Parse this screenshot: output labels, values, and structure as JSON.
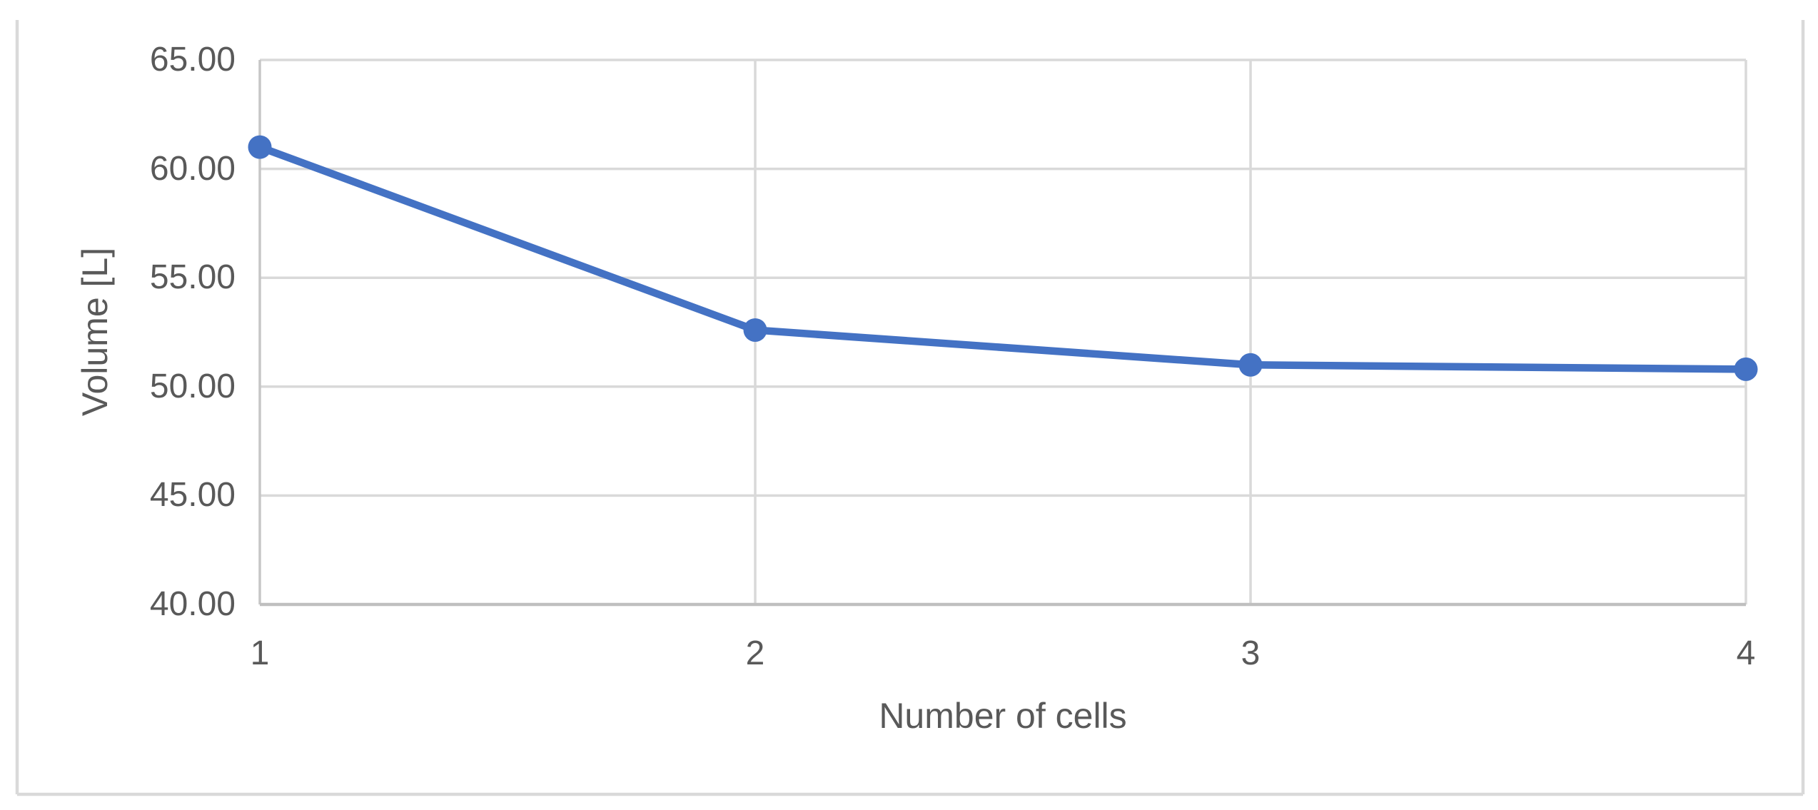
{
  "chart_data": {
    "type": "line",
    "title": "",
    "categories": [
      "1",
      "2",
      "3",
      "4"
    ],
    "values": [
      61.0,
      52.6,
      51.0,
      50.8
    ],
    "xlabel": "Number of cells",
    "ylabel": "Volume [L]",
    "ylim": [
      40,
      65
    ],
    "ytick_step": 5,
    "ytick_labels": [
      "65.00",
      "60.00",
      "55.00",
      "50.00",
      "45.00",
      "40.00"
    ],
    "xtick_labels": [
      "1",
      "2",
      "3",
      "4"
    ],
    "grid": true,
    "legend_position": "none",
    "series_color": "#4472C4",
    "marker": "circle"
  },
  "styles": {
    "text_color": "#595959",
    "gridline_color": "#D9D9D9",
    "axis_line_color": "#BFBFBF",
    "left_axis_line_color": "#C6C6C6",
    "figure_border_color": "#D9D9D9",
    "background_color": "#FFFFFF"
  }
}
